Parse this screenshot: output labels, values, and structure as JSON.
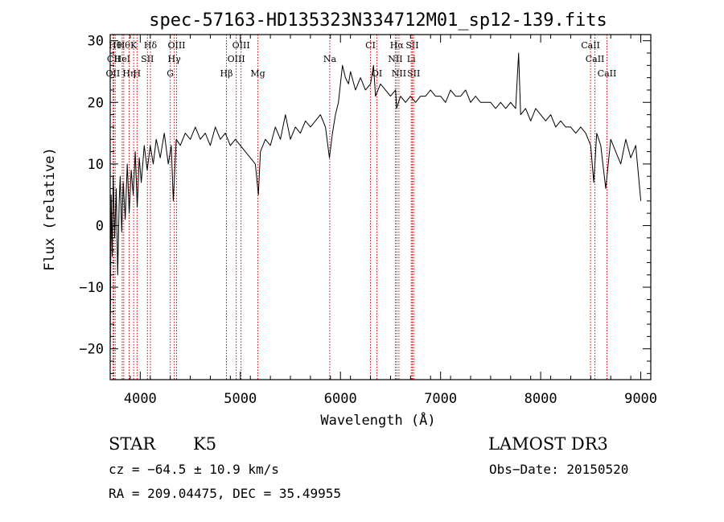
{
  "chart_data": {
    "type": "line",
    "title": "spec-57163-HD135323N334712M01_sp12-139.fits",
    "xlabel": "Wavelength (Å)",
    "ylabel": "Flux (relative)",
    "xlim": [
      3700,
      9100
    ],
    "ylim": [
      -25,
      31
    ],
    "xticks": [
      4000,
      5000,
      6000,
      7000,
      8000,
      9000
    ],
    "xtick_labels": [
      "4000",
      "5000",
      "6000",
      "7000",
      "8000",
      "9000"
    ],
    "yticks": [
      -20,
      -10,
      0,
      10,
      20,
      30
    ],
    "ytick_labels": [
      "−20",
      "−10",
      "0",
      "10",
      "20",
      "30"
    ],
    "grid": false,
    "series": [
      {
        "points": [
          [
            3700,
            -20
          ],
          [
            3710,
            5
          ],
          [
            3720,
            -5
          ],
          [
            3730,
            8
          ],
          [
            3745,
            -2
          ],
          [
            3760,
            6
          ],
          [
            3775,
            -8
          ],
          [
            3790,
            4
          ],
          [
            3800,
            8
          ],
          [
            3815,
            -1
          ],
          [
            3830,
            7
          ],
          [
            3850,
            1
          ],
          [
            3870,
            10
          ],
          [
            3890,
            2
          ],
          [
            3910,
            9
          ],
          [
            3930,
            5
          ],
          [
            3950,
            12
          ],
          [
            3970,
            3
          ],
          [
            3990,
            11
          ],
          [
            4010,
            7
          ],
          [
            4040,
            13
          ],
          [
            4070,
            9
          ],
          [
            4100,
            13
          ],
          [
            4130,
            10
          ],
          [
            4160,
            14
          ],
          [
            4200,
            11
          ],
          [
            4240,
            15
          ],
          [
            4280,
            10
          ],
          [
            4310,
            13
          ],
          [
            4330,
            4
          ],
          [
            4360,
            14
          ],
          [
            4400,
            13
          ],
          [
            4450,
            15
          ],
          [
            4500,
            14
          ],
          [
            4550,
            16
          ],
          [
            4600,
            14
          ],
          [
            4650,
            15
          ],
          [
            4700,
            13
          ],
          [
            4750,
            16
          ],
          [
            4800,
            14
          ],
          [
            4850,
            15
          ],
          [
            4900,
            13
          ],
          [
            4950,
            14
          ],
          [
            5000,
            13
          ],
          [
            5050,
            12
          ],
          [
            5100,
            11
          ],
          [
            5150,
            10
          ],
          [
            5180,
            5
          ],
          [
            5200,
            12
          ],
          [
            5250,
            14
          ],
          [
            5300,
            13
          ],
          [
            5350,
            16
          ],
          [
            5400,
            14
          ],
          [
            5450,
            18
          ],
          [
            5500,
            14
          ],
          [
            5550,
            16
          ],
          [
            5600,
            15
          ],
          [
            5650,
            17
          ],
          [
            5700,
            16
          ],
          [
            5750,
            17
          ],
          [
            5800,
            18
          ],
          [
            5850,
            16
          ],
          [
            5890,
            11
          ],
          [
            5920,
            15
          ],
          [
            5950,
            18
          ],
          [
            5980,
            20
          ],
          [
            6000,
            23
          ],
          [
            6020,
            26
          ],
          [
            6050,
            24
          ],
          [
            6080,
            23
          ],
          [
            6100,
            25
          ],
          [
            6150,
            22
          ],
          [
            6200,
            24
          ],
          [
            6250,
            22
          ],
          [
            6300,
            23
          ],
          [
            6330,
            26
          ],
          [
            6350,
            21
          ],
          [
            6400,
            23
          ],
          [
            6450,
            22
          ],
          [
            6500,
            21
          ],
          [
            6550,
            22
          ],
          [
            6560,
            19
          ],
          [
            6600,
            21
          ],
          [
            6650,
            20
          ],
          [
            6700,
            21
          ],
          [
            6750,
            20
          ],
          [
            6800,
            21
          ],
          [
            6850,
            21
          ],
          [
            6900,
            22
          ],
          [
            6950,
            21
          ],
          [
            7000,
            21
          ],
          [
            7050,
            20
          ],
          [
            7100,
            22
          ],
          [
            7150,
            21
          ],
          [
            7200,
            21
          ],
          [
            7250,
            22
          ],
          [
            7300,
            20
          ],
          [
            7350,
            21
          ],
          [
            7400,
            20
          ],
          [
            7450,
            20
          ],
          [
            7500,
            20
          ],
          [
            7550,
            19
          ],
          [
            7600,
            20
          ],
          [
            7650,
            19
          ],
          [
            7700,
            20
          ],
          [
            7750,
            19
          ],
          [
            7780,
            28
          ],
          [
            7800,
            18
          ],
          [
            7850,
            19
          ],
          [
            7900,
            17
          ],
          [
            7950,
            19
          ],
          [
            8000,
            18
          ],
          [
            8050,
            17
          ],
          [
            8100,
            18
          ],
          [
            8150,
            16
          ],
          [
            8200,
            17
          ],
          [
            8250,
            16
          ],
          [
            8300,
            16
          ],
          [
            8350,
            15
          ],
          [
            8400,
            16
          ],
          [
            8450,
            15
          ],
          [
            8500,
            13
          ],
          [
            8530,
            7
          ],
          [
            8560,
            15
          ],
          [
            8600,
            13
          ],
          [
            8650,
            6
          ],
          [
            8700,
            14
          ],
          [
            8750,
            12
          ],
          [
            8800,
            10
          ],
          [
            8850,
            14
          ],
          [
            8900,
            11
          ],
          [
            8950,
            13
          ],
          [
            9000,
            4
          ]
        ]
      }
    ],
    "line_marks": [
      {
        "x": 3750,
        "row": 1,
        "text": "Hθ"
      },
      {
        "x": 3736,
        "row": 2,
        "text": "CII"
      },
      {
        "x": 3727,
        "row": 3,
        "text": "OII"
      },
      {
        "x": 3835,
        "row": 1,
        "text": "Hθ"
      },
      {
        "x": 3820,
        "row": 2,
        "text": "HeI"
      },
      {
        "x": 3889,
        "row": 3,
        "text": "Hη"
      },
      {
        "x": 3934,
        "row": 1,
        "text": "K"
      },
      {
        "x": 3968,
        "row": 3,
        "text": "H"
      },
      {
        "x": 4072,
        "row": 2,
        "text": "SII"
      },
      {
        "x": 4102,
        "row": 1,
        "text": "Hδ"
      },
      {
        "x": 4300,
        "row": 3,
        "text": "G"
      },
      {
        "x": 4340,
        "row": 2,
        "text": "Hγ"
      },
      {
        "x": 4363,
        "row": 1,
        "text": "OIII"
      },
      {
        "x": 4861,
        "row": 3,
        "text": "Hβ"
      },
      {
        "x": 4959,
        "row": 2,
        "text": "OIII"
      },
      {
        "x": 5007,
        "row": 1,
        "text": "OIII"
      },
      {
        "x": 5175,
        "row": 3,
        "text": "Mg"
      },
      {
        "x": 5893,
        "row": 2,
        "text": "Na"
      },
      {
        "x": 6300,
        "row": 1,
        "text": "CI"
      },
      {
        "x": 6364,
        "row": 3,
        "text": "OI"
      },
      {
        "x": 6548,
        "row": 2,
        "text": "NII"
      },
      {
        "x": 6563,
        "row": 1,
        "text": "Hα"
      },
      {
        "x": 6584,
        "row": 3,
        "text": "NII"
      },
      {
        "x": 6707,
        "row": 2,
        "text": "Li"
      },
      {
        "x": 6717,
        "row": 1,
        "text": "SII"
      },
      {
        "x": 6731,
        "row": 3,
        "text": "SII"
      },
      {
        "x": 8498,
        "row": 1,
        "text": "CaII"
      },
      {
        "x": 8542,
        "row": 2,
        "text": "CaII"
      },
      {
        "x": 8662,
        "row": 3,
        "text": "CaII"
      }
    ]
  },
  "info": {
    "class": "STAR",
    "subclass": "K5",
    "survey": "LAMOST DR3",
    "cz": "cz = −64.5 ± 10.9 km/s",
    "obsdate": "Obs−Date: 20150520",
    "radec": "RA = 209.04475, DEC =  35.49955"
  }
}
